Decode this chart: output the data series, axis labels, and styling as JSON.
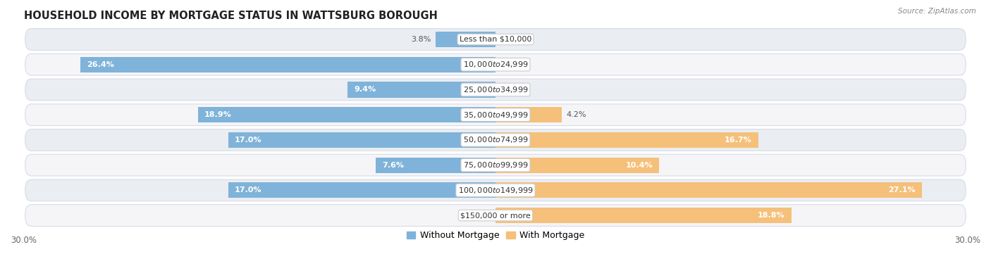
{
  "title": "HOUSEHOLD INCOME BY MORTGAGE STATUS IN WATTSBURG BOROUGH",
  "source": "Source: ZipAtlas.com",
  "categories": [
    "Less than $10,000",
    "$10,000 to $24,999",
    "$25,000 to $34,999",
    "$35,000 to $49,999",
    "$50,000 to $74,999",
    "$75,000 to $99,999",
    "$100,000 to $149,999",
    "$150,000 or more"
  ],
  "without_mortgage": [
    3.8,
    26.4,
    9.4,
    18.9,
    17.0,
    7.6,
    17.0,
    0.0
  ],
  "with_mortgage": [
    0.0,
    0.0,
    0.0,
    4.2,
    16.7,
    10.4,
    27.1,
    18.8
  ],
  "color_without": "#7fb3d9",
  "color_with": "#f5c07a",
  "bg_row_even": "#eaedf2",
  "bg_row_odd": "#f5f5f8",
  "row_edge_color": "#d8dce6",
  "xlim": 30.0,
  "legend_labels": [
    "Without Mortgage",
    "With Mortgage"
  ],
  "title_fontsize": 10.5,
  "label_fontsize": 8.0,
  "value_fontsize": 8.0,
  "bar_height": 0.62,
  "inside_threshold": 5.0
}
